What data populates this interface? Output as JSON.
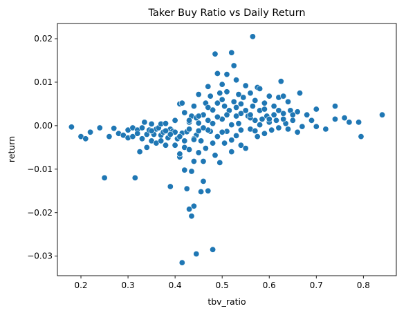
{
  "chart_data": {
    "type": "scatter",
    "title": "Taker Buy Ratio vs Daily Return",
    "xlabel": "tbv_ratio",
    "ylabel": "return",
    "xlim": [
      0.15,
      0.87
    ],
    "ylim": [
      -0.0345,
      0.0235
    ],
    "x_ticks": [
      0.2,
      0.3,
      0.4,
      0.5,
      0.6,
      0.7,
      0.8
    ],
    "x_tick_labels": [
      "0.2",
      "0.3",
      "0.4",
      "0.5",
      "0.6",
      "0.7",
      "0.8"
    ],
    "y_ticks": [
      -0.03,
      -0.02,
      -0.01,
      0.0,
      0.01,
      0.02
    ],
    "y_tick_labels": [
      "−0.03",
      "−0.02",
      "−0.01",
      "0.00",
      "0.01",
      "0.02"
    ],
    "grid": false,
    "point_color": "#1f77b4",
    "points": [
      [
        0.18,
        -0.0003
      ],
      [
        0.2,
        -0.0025
      ],
      [
        0.21,
        -0.003
      ],
      [
        0.22,
        -0.0015
      ],
      [
        0.24,
        -0.0005
      ],
      [
        0.25,
        -0.012
      ],
      [
        0.26,
        -0.0025
      ],
      [
        0.27,
        -0.0006
      ],
      [
        0.28,
        -0.0018
      ],
      [
        0.29,
        -0.0022
      ],
      [
        0.3,
        -0.001
      ],
      [
        0.3,
        -0.0028
      ],
      [
        0.31,
        -0.0005
      ],
      [
        0.31,
        -0.0025
      ],
      [
        0.315,
        -0.012
      ],
      [
        0.32,
        -0.001
      ],
      [
        0.32,
        -0.0018
      ],
      [
        0.325,
        -0.006
      ],
      [
        0.33,
        -0.0005
      ],
      [
        0.33,
        -0.003
      ],
      [
        0.335,
        0.0008
      ],
      [
        0.34,
        -0.002
      ],
      [
        0.34,
        -0.005
      ],
      [
        0.345,
        -0.001
      ],
      [
        0.35,
        0.0004
      ],
      [
        0.35,
        -0.0035
      ],
      [
        0.355,
        -0.002
      ],
      [
        0.36,
        -0.0008
      ],
      [
        0.36,
        -0.004
      ],
      [
        0.365,
        -0.0005
      ],
      [
        0.37,
        -0.0022
      ],
      [
        0.37,
        0.0004
      ],
      [
        0.375,
        -0.0015
      ],
      [
        0.38,
        -0.0045
      ],
      [
        0.38,
        0.0005
      ],
      [
        0.385,
        -0.0028
      ],
      [
        0.39,
        -0.0008
      ],
      [
        0.39,
        -0.014
      ],
      [
        0.395,
        -0.0013
      ],
      [
        0.4,
        0.0012
      ],
      [
        0.4,
        -0.0045
      ],
      [
        0.405,
        -0.003
      ],
      [
        0.41,
        0.005
      ],
      [
        0.41,
        -0.0072
      ],
      [
        0.415,
        0.0052
      ],
      [
        0.415,
        -0.0017
      ],
      [
        0.42,
        0.003
      ],
      [
        0.42,
        -0.005
      ],
      [
        0.425,
        -0.0014
      ],
      [
        0.425,
        -0.0145
      ],
      [
        0.43,
        0.0008
      ],
      [
        0.43,
        -0.0055
      ],
      [
        0.43,
        -0.0192
      ],
      [
        0.435,
        0.0022
      ],
      [
        0.435,
        -0.0105
      ],
      [
        0.44,
        0.0045
      ],
      [
        0.44,
        -0.0082
      ],
      [
        0.44,
        -0.0185
      ],
      [
        0.445,
        -0.0022
      ],
      [
        0.445,
        0.0018
      ],
      [
        0.45,
        0.0072
      ],
      [
        0.45,
        -0.0062
      ],
      [
        0.45,
        0.0006
      ],
      [
        0.455,
        -0.0152
      ],
      [
        0.455,
        -0.0035
      ],
      [
        0.46,
        0.0025
      ],
      [
        0.46,
        -0.0128
      ],
      [
        0.465,
        0.0052
      ],
      [
        0.465,
        -0.0052
      ],
      [
        0.47,
        0.009
      ],
      [
        0.47,
        -0.015
      ],
      [
        0.47,
        0.0012
      ],
      [
        0.475,
        -0.0013
      ],
      [
        0.475,
        0.0068
      ],
      [
        0.48,
        -0.004
      ],
      [
        0.48,
        0.0036
      ],
      [
        0.485,
        0.0165
      ],
      [
        0.485,
        -0.0068
      ],
      [
        0.49,
        0.012
      ],
      [
        0.49,
        -0.0025
      ],
      [
        0.495,
        0.0075
      ],
      [
        0.495,
        -0.0085
      ],
      [
        0.5,
        0.0095
      ],
      [
        0.5,
        0.0015
      ],
      [
        0.505,
        -0.004
      ],
      [
        0.505,
        0.0045
      ],
      [
        0.51,
        0.0118
      ],
      [
        0.51,
        -0.0013
      ],
      [
        0.515,
        0.0035
      ],
      [
        0.52,
        0.0168
      ],
      [
        0.52,
        -0.0033
      ],
      [
        0.525,
        0.0138
      ],
      [
        0.525,
        0.0055
      ],
      [
        0.53,
        0.0105
      ],
      [
        0.53,
        -0.0023
      ],
      [
        0.535,
        0.0072
      ],
      [
        0.535,
        0.0005
      ],
      [
        0.54,
        0.0028
      ],
      [
        0.54,
        -0.0045
      ],
      [
        0.545,
        0.0065
      ],
      [
        0.55,
        0.0092
      ],
      [
        0.55,
        -0.0052
      ],
      [
        0.555,
        0.0022
      ],
      [
        0.56,
        0.0075
      ],
      [
        0.56,
        -0.0008
      ],
      [
        0.565,
        0.0045
      ],
      [
        0.565,
        0.0205
      ],
      [
        0.57,
        0.0012
      ],
      [
        0.575,
        0.0088
      ],
      [
        0.575,
        -0.0025
      ],
      [
        0.58,
        0.0085
      ],
      [
        0.58,
        0.0035
      ],
      [
        0.585,
        0.0015
      ],
      [
        0.59,
        0.0052
      ],
      [
        0.59,
        -0.0018
      ],
      [
        0.595,
        0.0022
      ],
      [
        0.6,
        0.0068
      ],
      [
        0.6,
        0.0008
      ],
      [
        0.605,
        -0.001
      ],
      [
        0.61,
        0.0045
      ],
      [
        0.615,
        0.0012
      ],
      [
        0.62,
        0.0065
      ],
      [
        0.62,
        -0.0005
      ],
      [
        0.625,
        0.0102
      ],
      [
        0.63,
        0.0028
      ],
      [
        0.63,
        0.0068
      ],
      [
        0.635,
        0.0005
      ],
      [
        0.64,
        0.0055
      ],
      [
        0.645,
        0.0035
      ],
      [
        0.65,
        0.0012
      ],
      [
        0.66,
        0.0032
      ],
      [
        0.665,
        0.0075
      ],
      [
        0.67,
        -0.0002
      ],
      [
        0.68,
        0.0025
      ],
      [
        0.69,
        0.0012
      ],
      [
        0.7,
        0.0038
      ],
      [
        0.7,
        -0.0002
      ],
      [
        0.72,
        -0.0008
      ],
      [
        0.74,
        0.0045
      ],
      [
        0.74,
        0.0015
      ],
      [
        0.76,
        0.0018
      ],
      [
        0.77,
        0.0008
      ],
      [
        0.79,
        0.0008
      ],
      [
        0.795,
        -0.0025
      ],
      [
        0.84,
        0.0025
      ],
      [
        0.52,
        0.0002
      ],
      [
        0.53,
        0.0022
      ],
      [
        0.54,
        -0.001
      ],
      [
        0.55,
        0.0035
      ],
      [
        0.56,
        0.0018
      ],
      [
        0.57,
        -0.0012
      ],
      [
        0.58,
        0.0002
      ],
      [
        0.47,
        -0.001
      ],
      [
        0.48,
        0.0005
      ],
      [
        0.49,
        0.002
      ],
      [
        0.5,
        -0.0015
      ],
      [
        0.51,
        0.0025
      ],
      [
        0.44,
        -0.003
      ],
      [
        0.45,
        -0.0012
      ],
      [
        0.46,
        -0.0005
      ],
      [
        0.42,
        -0.0035
      ],
      [
        0.41,
        -0.0025
      ],
      [
        0.4,
        -0.0015
      ],
      [
        0.39,
        -0.002
      ],
      [
        0.38,
        -0.0012
      ],
      [
        0.61,
        0.0025
      ],
      [
        0.62,
        0.0035
      ],
      [
        0.63,
        0.0015
      ],
      [
        0.64,
        -0.0008
      ],
      [
        0.65,
        0.0025
      ],
      [
        0.66,
        -0.0015
      ],
      [
        0.43,
        0.0012
      ],
      [
        0.5,
        0.006
      ],
      [
        0.52,
        -0.006
      ],
      [
        0.54,
        0.005
      ],
      [
        0.41,
        -0.0065
      ],
      [
        0.42,
        -0.0102
      ],
      [
        0.44,
        -0.0032
      ],
      [
        0.46,
        -0.0082
      ],
      [
        0.48,
        -0.0285
      ],
      [
        0.445,
        -0.0295
      ],
      [
        0.415,
        -0.0315
      ],
      [
        0.435,
        -0.0208
      ],
      [
        0.35,
        -0.0012
      ],
      [
        0.37,
        -0.0035
      ],
      [
        0.56,
        0.0025
      ],
      [
        0.6,
        0.0015
      ],
      [
        0.57,
        0.0058
      ],
      [
        0.59,
        0.0038
      ],
      [
        0.53,
        0.0042
      ],
      [
        0.51,
        0.0078
      ],
      [
        0.49,
        0.0052
      ],
      [
        0.47,
        0.0042
      ],
      [
        0.45,
        0.0022
      ],
      [
        0.43,
        -0.0008
      ]
    ]
  }
}
